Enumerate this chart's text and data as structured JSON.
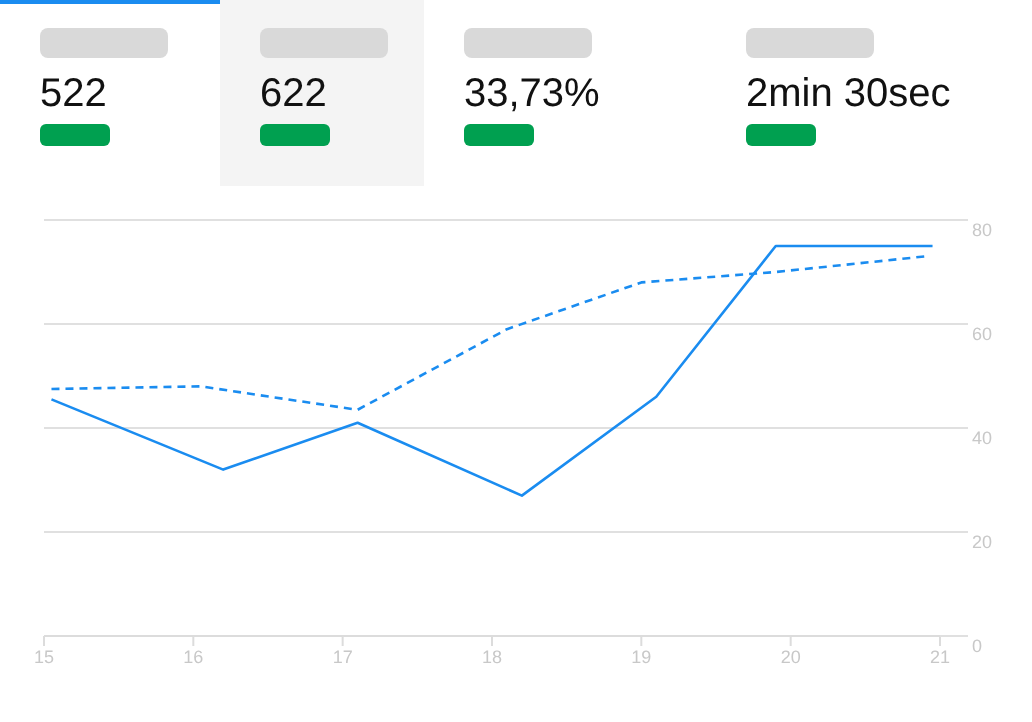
{
  "chart_data": {
    "type": "line",
    "annotations": [
      "522",
      "622",
      "33,73%",
      "2min 30sec"
    ],
    "xlim": [
      15,
      21
    ],
    "xticks": [
      15,
      16,
      17,
      18,
      19,
      20,
      21
    ],
    "ylim": [
      0,
      80
    ],
    "yticks": [
      0,
      20,
      40,
      60,
      80
    ],
    "grid": "y",
    "marker": "none",
    "series": [
      {
        "color": "#1a8cf0",
        "line_style": "solid",
        "x": [
          15.05,
          16.2,
          17.1,
          18.2,
          19.1,
          19.9,
          20.95
        ],
        "values": [
          45.5,
          32,
          41,
          27,
          46,
          75,
          75
        ]
      },
      {
        "color": "#1a8cf0",
        "line_style": "dashed",
        "x": [
          15.05,
          16.05,
          17.1,
          18.1,
          19,
          19.9,
          20.9
        ],
        "values": [
          47.5,
          48,
          43.5,
          59,
          68,
          70,
          73
        ]
      }
    ]
  }
}
